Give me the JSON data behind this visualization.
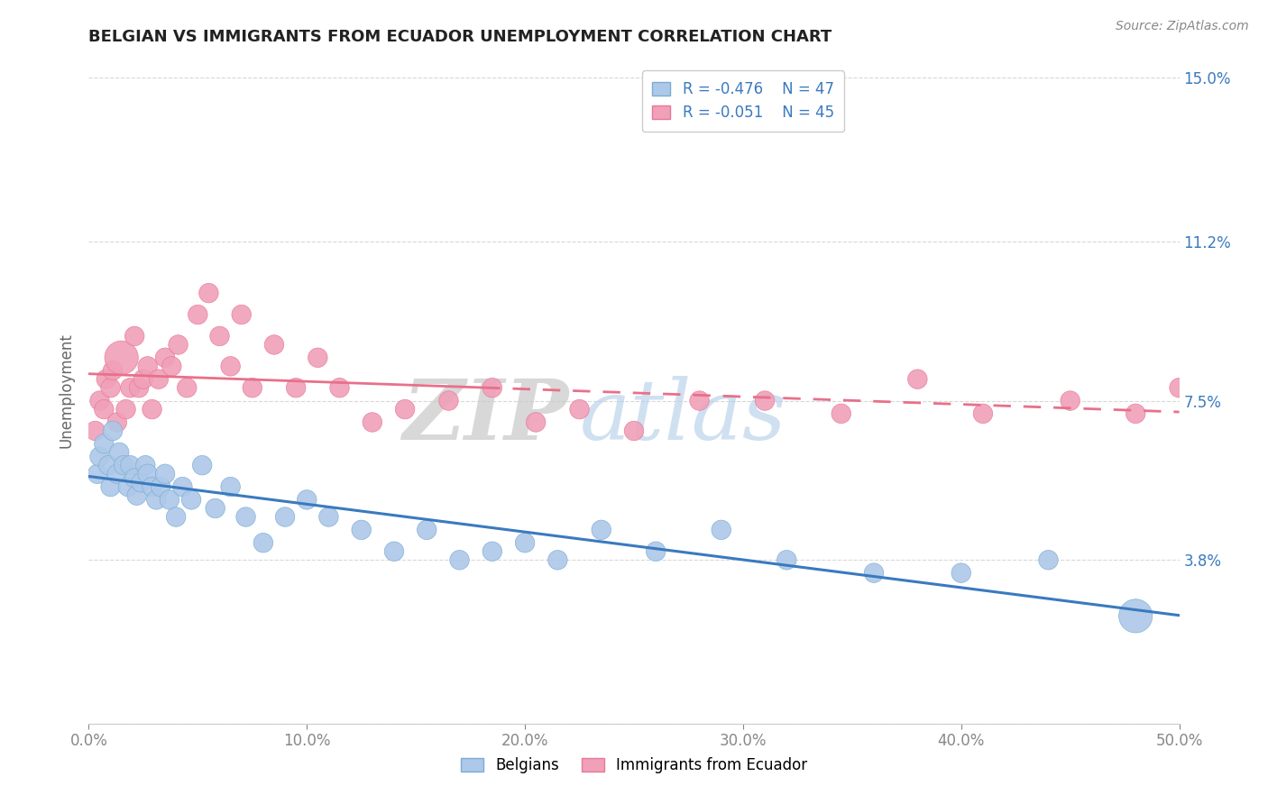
{
  "title": "BELGIAN VS IMMIGRANTS FROM ECUADOR UNEMPLOYMENT CORRELATION CHART",
  "source": "Source: ZipAtlas.com",
  "ylabel": "Unemployment",
  "xlim": [
    0.0,
    0.5
  ],
  "ylim": [
    0.0,
    0.155
  ],
  "yticks": [
    0.0,
    0.038,
    0.075,
    0.112,
    0.15
  ],
  "ytick_labels": [
    "",
    "3.8%",
    "7.5%",
    "11.2%",
    "15.0%"
  ],
  "xticks": [
    0.0,
    0.1,
    0.2,
    0.3,
    0.4,
    0.5
  ],
  "watermark_zip": "ZIP",
  "watermark_atlas": "atlas",
  "belgians_color": "#adc8e8",
  "ecuador_color": "#f0a0b8",
  "belgians_edge_color": "#7aadd4",
  "ecuador_edge_color": "#e87898",
  "belgians_line_color": "#3a7abf",
  "ecuador_line_color": "#e8708a",
  "legend_R_belgians": "R = -0.476",
  "legend_N_belgians": "N = 47",
  "legend_R_ecuador": "R = -0.051",
  "legend_N_ecuador": "N = 45",
  "belgians_x": [
    0.004,
    0.005,
    0.007,
    0.009,
    0.01,
    0.011,
    0.013,
    0.014,
    0.016,
    0.018,
    0.019,
    0.021,
    0.022,
    0.024,
    0.026,
    0.027,
    0.029,
    0.031,
    0.033,
    0.035,
    0.037,
    0.04,
    0.043,
    0.047,
    0.052,
    0.058,
    0.065,
    0.072,
    0.08,
    0.09,
    0.1,
    0.11,
    0.125,
    0.14,
    0.155,
    0.17,
    0.185,
    0.2,
    0.215,
    0.235,
    0.26,
    0.29,
    0.32,
    0.36,
    0.4,
    0.44,
    0.48
  ],
  "belgians_y": [
    0.058,
    0.062,
    0.065,
    0.06,
    0.055,
    0.068,
    0.058,
    0.063,
    0.06,
    0.055,
    0.06,
    0.057,
    0.053,
    0.056,
    0.06,
    0.058,
    0.055,
    0.052,
    0.055,
    0.058,
    0.052,
    0.048,
    0.055,
    0.052,
    0.06,
    0.05,
    0.055,
    0.048,
    0.042,
    0.048,
    0.052,
    0.048,
    0.045,
    0.04,
    0.045,
    0.038,
    0.04,
    0.042,
    0.038,
    0.045,
    0.04,
    0.045,
    0.038,
    0.035,
    0.035,
    0.038,
    0.025
  ],
  "belgians_size": [
    20,
    20,
    20,
    20,
    20,
    20,
    20,
    20,
    20,
    20,
    20,
    20,
    20,
    20,
    20,
    20,
    20,
    20,
    20,
    20,
    20,
    20,
    20,
    20,
    20,
    20,
    20,
    20,
    20,
    20,
    20,
    20,
    20,
    20,
    20,
    20,
    20,
    20,
    20,
    20,
    20,
    20,
    20,
    20,
    20,
    20,
    60
  ],
  "ecuador_x": [
    0.003,
    0.005,
    0.007,
    0.008,
    0.01,
    0.011,
    0.013,
    0.015,
    0.017,
    0.019,
    0.021,
    0.023,
    0.025,
    0.027,
    0.029,
    0.032,
    0.035,
    0.038,
    0.041,
    0.045,
    0.05,
    0.055,
    0.06,
    0.065,
    0.07,
    0.075,
    0.085,
    0.095,
    0.105,
    0.115,
    0.13,
    0.145,
    0.165,
    0.185,
    0.205,
    0.225,
    0.25,
    0.28,
    0.31,
    0.345,
    0.38,
    0.41,
    0.45,
    0.48,
    0.5
  ],
  "ecuador_y": [
    0.068,
    0.075,
    0.073,
    0.08,
    0.078,
    0.082,
    0.07,
    0.085,
    0.073,
    0.078,
    0.09,
    0.078,
    0.08,
    0.083,
    0.073,
    0.08,
    0.085,
    0.083,
    0.088,
    0.078,
    0.095,
    0.1,
    0.09,
    0.083,
    0.095,
    0.078,
    0.088,
    0.078,
    0.085,
    0.078,
    0.07,
    0.073,
    0.075,
    0.078,
    0.07,
    0.073,
    0.068,
    0.075,
    0.075,
    0.072,
    0.08,
    0.072,
    0.075,
    0.072,
    0.078
  ],
  "ecuador_size": [
    20,
    20,
    20,
    20,
    20,
    20,
    20,
    60,
    20,
    20,
    20,
    20,
    20,
    20,
    20,
    20,
    20,
    20,
    20,
    20,
    20,
    20,
    20,
    20,
    20,
    20,
    20,
    20,
    20,
    20,
    20,
    20,
    20,
    20,
    20,
    20,
    20,
    20,
    20,
    20,
    20,
    20,
    20,
    20,
    20
  ],
  "background_color": "#ffffff",
  "grid_color": "#d8d8d8",
  "title_fontsize": 13,
  "legend_fontsize": 12,
  "tick_fontsize": 12
}
